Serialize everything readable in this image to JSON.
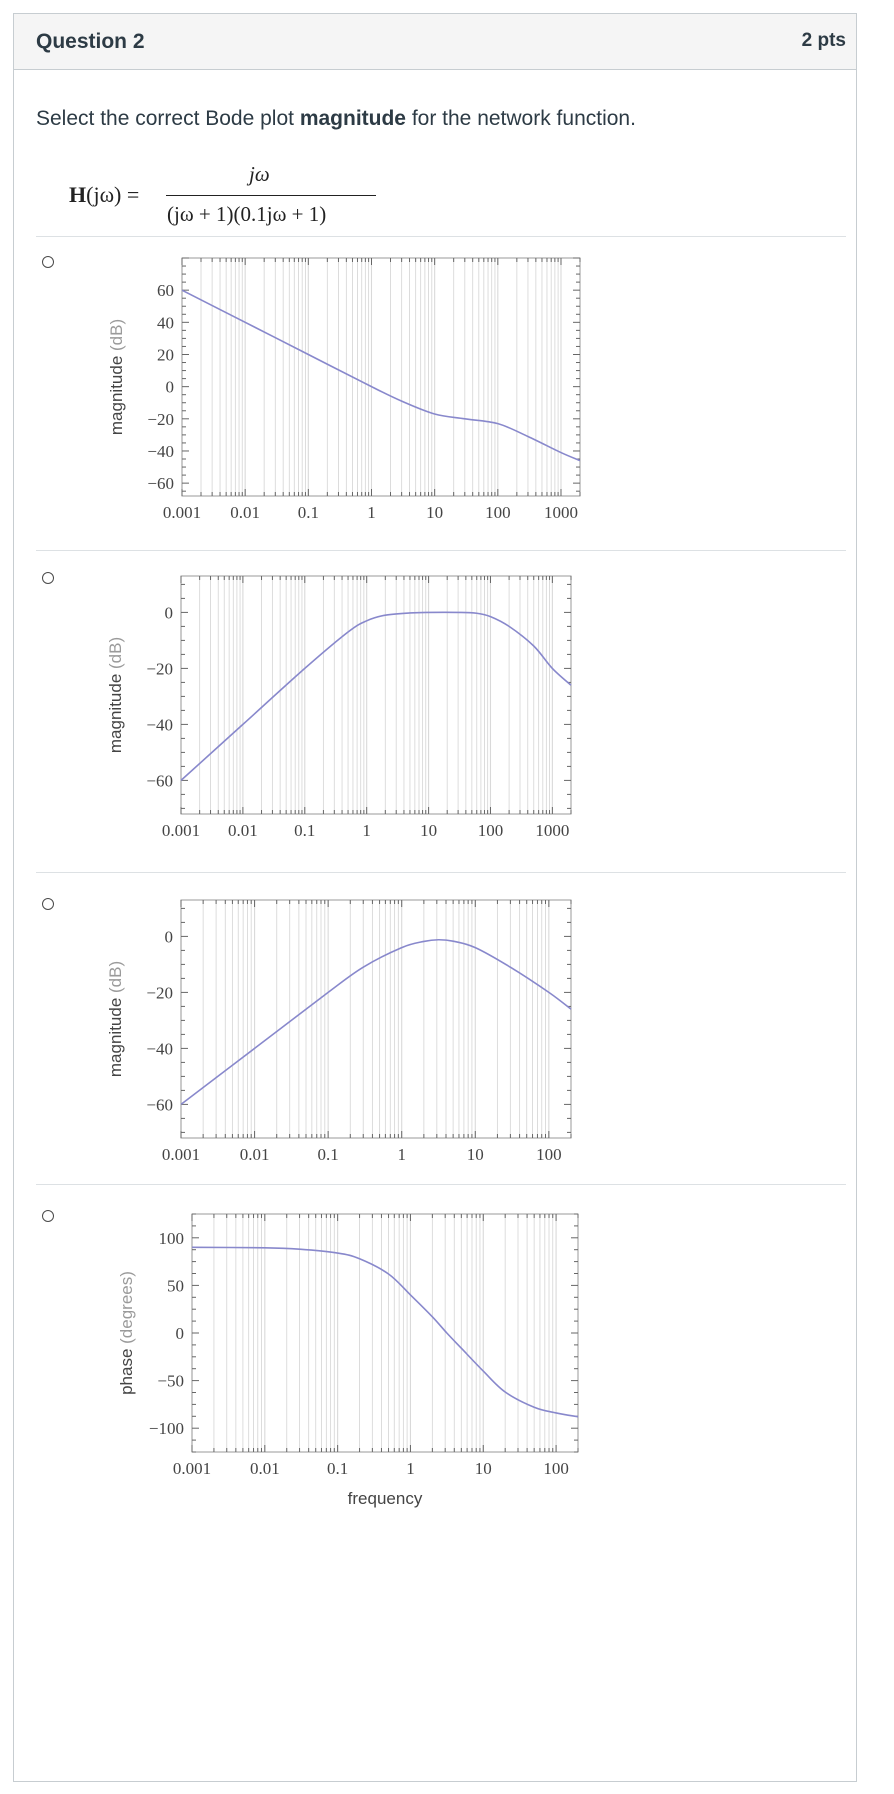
{
  "question": {
    "title": "Question 2",
    "points": "2 pts",
    "prompt_before": "Select the correct Bode plot ",
    "prompt_bold": "magnitude",
    "prompt_after": " for the network function.",
    "formula": {
      "lhs_bold": "H",
      "lhs_rest": "(jω) =",
      "numerator": "jω",
      "denominator": "(jω + 1)(0.1jω + 1)"
    }
  },
  "colors": {
    "curve": "#8888cc",
    "grid": "#d9d9d9",
    "frame": "#999999"
  },
  "options": [
    {
      "id": "a",
      "chart_data": {
        "type": "line",
        "ylabel_word": "magnitude",
        "ylabel_unit": "(dB)",
        "xlabel": "",
        "x_scale": "log",
        "xlim": [
          0.001,
          2000
        ],
        "ylim": [
          -68,
          80
        ],
        "x_ticks": [
          0.001,
          0.01,
          0.1,
          1,
          10,
          100,
          1000
        ],
        "x_tick_labels": [
          "0.001",
          "0.01",
          "0.1",
          "1",
          "10",
          "100",
          "1000"
        ],
        "y_ticks": [
          60,
          40,
          20,
          0,
          -20,
          -40,
          -60
        ],
        "y_tick_labels": [
          "60",
          "40",
          "20",
          "0",
          "−20",
          "−40",
          "−60"
        ],
        "series": [
          {
            "x": [
              0.001,
              0.01,
              0.1,
              1,
              3,
              10,
              30,
              100,
              300,
              1000,
              2000
            ],
            "y": [
              60,
              40,
              20,
              0,
              -9,
              -17,
              -20,
              -23,
              -31,
              -41,
              -46
            ]
          }
        ]
      }
    },
    {
      "id": "b",
      "chart_data": {
        "type": "line",
        "ylabel_word": "magnitude",
        "ylabel_unit": "(dB)",
        "xlabel": "",
        "x_scale": "log",
        "xlim": [
          0.001,
          2000
        ],
        "ylim": [
          -72,
          13
        ],
        "x_ticks": [
          0.001,
          0.01,
          0.1,
          1,
          10,
          100,
          1000
        ],
        "x_tick_labels": [
          "0.001",
          "0.01",
          "0.1",
          "1",
          "10",
          "100",
          "1000"
        ],
        "y_ticks": [
          0,
          -20,
          -40,
          -60
        ],
        "y_tick_labels": [
          "0",
          "−20",
          "−40",
          "−60"
        ],
        "series": [
          {
            "x": [
              0.001,
              0.01,
              0.1,
              0.5,
              1,
              2,
              5,
              10,
              30,
              60,
              100,
              200,
              500,
              1000,
              2000
            ],
            "y": [
              -60,
              -40,
              -20,
              -7,
              -3,
              -1,
              -0.2,
              0,
              0,
              -0.3,
              -1.5,
              -5,
              -12,
              -20,
              -26
            ]
          }
        ]
      }
    },
    {
      "id": "c",
      "chart_data": {
        "type": "line",
        "ylabel_word": "magnitude",
        "ylabel_unit": "(dB)",
        "xlabel": "",
        "x_scale": "log",
        "xlim": [
          0.001,
          200
        ],
        "ylim": [
          -72,
          13
        ],
        "x_ticks": [
          0.001,
          0.01,
          0.1,
          1,
          10,
          100
        ],
        "x_tick_labels": [
          "0.001",
          "0.01",
          "0.1",
          "1",
          "10",
          "100"
        ],
        "y_ticks": [
          0,
          -20,
          -40,
          -60
        ],
        "y_tick_labels": [
          "0",
          "−20",
          "−40",
          "−60"
        ],
        "series": [
          {
            "x": [
              0.001,
              0.01,
              0.1,
              0.3,
              1,
              2,
              3.16,
              5,
              10,
              30,
              100,
              200
            ],
            "y": [
              -60,
              -40,
              -20,
              -11,
              -4,
              -1.8,
              -1.2,
              -1.7,
              -4,
              -11,
              -20,
              -26
            ]
          }
        ]
      }
    },
    {
      "id": "d",
      "chart_data": {
        "type": "line",
        "ylabel_word": "phase",
        "ylabel_unit": "(degrees)",
        "xlabel": "frequency",
        "x_scale": "log",
        "xlim": [
          0.001,
          200
        ],
        "ylim": [
          -125,
          125
        ],
        "x_ticks": [
          0.001,
          0.01,
          0.1,
          1,
          10,
          100
        ],
        "x_tick_labels": [
          "0.001",
          "0.01",
          "0.1",
          "1",
          "10",
          "100"
        ],
        "y_ticks": [
          100,
          50,
          0,
          -50,
          -100
        ],
        "y_tick_labels": [
          "100",
          "50",
          "0",
          "−50",
          "−100"
        ],
        "series": [
          {
            "x": [
              0.001,
              0.01,
              0.03,
              0.1,
              0.2,
              0.5,
              1,
              2,
              3.16,
              5,
              10,
              20,
              50,
              100,
              200
            ],
            "y": [
              90,
              89.5,
              88,
              84,
              78,
              62,
              40,
              17,
              0,
              -16,
              -40,
              -62,
              -78,
              -84,
              -88
            ]
          }
        ]
      }
    }
  ]
}
